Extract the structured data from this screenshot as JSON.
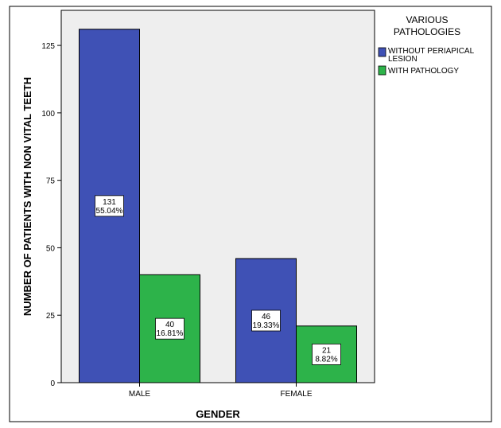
{
  "chart_data": {
    "type": "bar",
    "title": "",
    "xlabel": "GENDER",
    "ylabel": "NUMBER OF PATIENTS WITH NON VITAL TEETH",
    "categories": [
      "MALE",
      "FEMALE"
    ],
    "ylim": [
      0,
      138
    ],
    "yticks": [
      0,
      25,
      50,
      75,
      100,
      125
    ],
    "grid": false,
    "legend_title": "VARIOUS PATHOLOGIES",
    "legend_position": "top-right",
    "series": [
      {
        "name": "WITHOUT PERIAPICAL LESION",
        "color": "#3f51b5",
        "values": [
          131,
          46
        ],
        "labels": [
          [
            "131",
            "55.04%"
          ],
          [
            "46",
            "19.33%"
          ]
        ]
      },
      {
        "name": "WITH PATHOLOGY",
        "color": "#2db34a",
        "values": [
          40,
          21
        ],
        "labels": [
          [
            "40",
            "16.81%"
          ],
          [
            "21",
            "8.82%"
          ]
        ]
      }
    ],
    "plot_background": "#eeeeee"
  }
}
